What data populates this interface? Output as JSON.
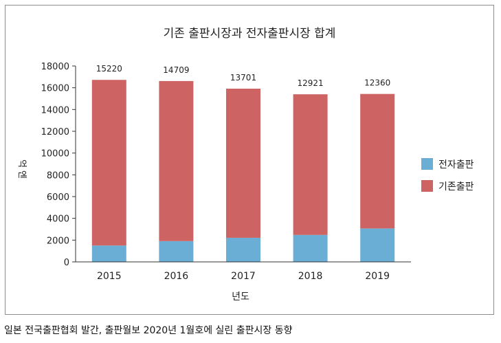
{
  "chart_data": {
    "type": "bar",
    "stacked": true,
    "title": "기존 출판시장과 전자출판시장 합계",
    "xlabel": "년도",
    "ylabel": "억 엔",
    "categories": [
      "2015",
      "2016",
      "2017",
      "2018",
      "2019"
    ],
    "ylim": [
      0,
      18000
    ],
    "yticks": [
      "0",
      "2000",
      "4000",
      "6000",
      "8000",
      "10000",
      "12000",
      "14000",
      "16000",
      "18000"
    ],
    "legend_position": "right",
    "series": [
      {
        "name": "전자출판",
        "color": "#6aaed6",
        "values": [
          1502,
          1909,
          2215,
          2479,
          3072
        ]
      },
      {
        "name": "기존출판",
        "color": "#cd6362",
        "values": [
          15220,
          14709,
          13701,
          12921,
          12360
        ]
      }
    ]
  },
  "caption": "일본 전국출판협회 발간,  출판월보 2020년 1월호에 실린 출판시장 동향"
}
